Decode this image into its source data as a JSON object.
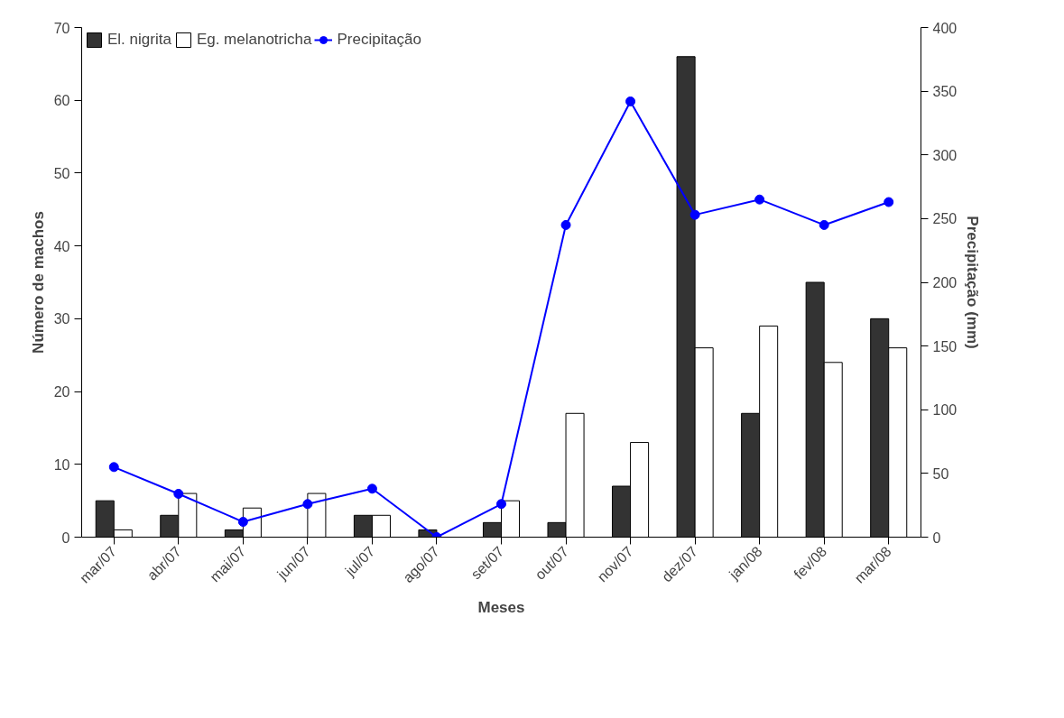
{
  "chart_data": {
    "type": "bar",
    "xlabel": "Meses",
    "ylabel": "Número de machos",
    "y2label": "Precipitação (mm)",
    "categories": [
      "mar/07",
      "abr/07",
      "mai/07",
      "jun/07",
      "jul/07",
      "ago/07",
      "set/07",
      "out/07",
      "nov/07",
      "dez/07",
      "jan/08",
      "fev/08",
      "mar/08"
    ],
    "series": [
      {
        "name": "El. nigrita",
        "color": "#333333",
        "values": [
          5,
          3,
          1,
          0,
          3,
          1,
          2,
          2,
          7,
          66,
          17,
          35,
          30
        ]
      },
      {
        "name": "Eg. melanotricha",
        "color": "#ffffff",
        "values": [
          1,
          6,
          4,
          6,
          3,
          0,
          5,
          17,
          13,
          26,
          29,
          24,
          26
        ]
      },
      {
        "name": "Precipitação",
        "type": "line",
        "axis": "y2",
        "color": "#0000ff",
        "marker": "circle",
        "values": [
          55,
          34,
          12,
          26,
          38,
          0,
          26,
          245,
          342,
          253,
          265,
          245,
          263
        ]
      }
    ],
    "ylim": [
      0,
      70
    ],
    "yticks": [
      0,
      10,
      20,
      30,
      40,
      50,
      60,
      70
    ],
    "y2lim": [
      0,
      400
    ],
    "y2ticks": [
      0,
      50,
      100,
      150,
      200,
      250,
      300,
      350,
      400
    ],
    "legend": "top",
    "grid": false
  }
}
